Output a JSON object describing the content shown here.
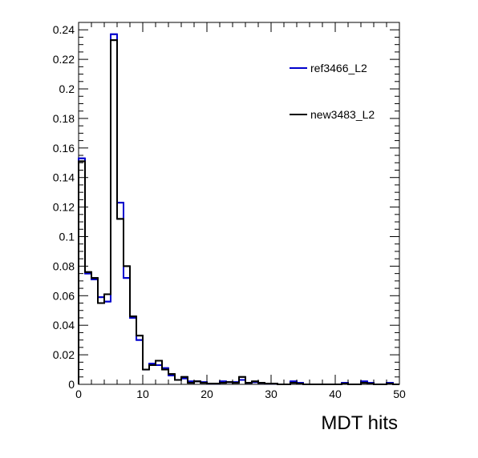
{
  "chart_data": {
    "type": "histogram",
    "xlabel": "MDT hits",
    "ylabel": "",
    "xlim": [
      0,
      50
    ],
    "ylim": [
      0,
      0.245
    ],
    "bin_width": 1,
    "x_ticks": [
      0,
      10,
      20,
      30,
      40,
      50
    ],
    "y_ticks": [
      0,
      0.02,
      0.04,
      0.06,
      0.08,
      0.1,
      0.12,
      0.14,
      0.16,
      0.18,
      0.2,
      0.22,
      0.24
    ],
    "grid": false,
    "legend_position": "top-right",
    "series": [
      {
        "name": "ref3466_L2",
        "color": "#0000cc",
        "values": [
          0.153,
          0.075,
          0.071,
          0.059,
          0.056,
          0.237,
          0.123,
          0.072,
          0.045,
          0.03,
          0.01,
          0.014,
          0.013,
          0.011,
          0.006,
          0.003,
          0.004,
          0.002,
          0.002,
          0.0015,
          0.0005,
          0.0005,
          0.002,
          0.0015,
          0.0015,
          0.003,
          0.001,
          0.0015,
          0.001,
          0.0005,
          0.0005,
          0,
          0,
          0.002,
          0.001,
          0,
          0,
          0,
          0,
          0,
          0,
          0.001,
          0,
          0,
          0.002,
          0.001,
          0,
          0,
          0.001,
          0
        ]
      },
      {
        "name": "new3483_L2",
        "color": "#000000",
        "values": [
          0.151,
          0.076,
          0.072,
          0.055,
          0.061,
          0.233,
          0.112,
          0.08,
          0.046,
          0.033,
          0.01,
          0.013,
          0.016,
          0.01,
          0.007,
          0.003,
          0.005,
          0.001,
          0.002,
          0.001,
          0.0005,
          0.0005,
          0.001,
          0.0015,
          0.001,
          0.005,
          0.001,
          0.002,
          0.001,
          0.0005,
          0.0005,
          0,
          0,
          0.001,
          0.0005,
          0,
          0,
          0,
          0,
          0,
          0,
          0.0005,
          0,
          0,
          0.001,
          0.0005,
          0,
          0,
          0.0005,
          0
        ]
      }
    ]
  }
}
